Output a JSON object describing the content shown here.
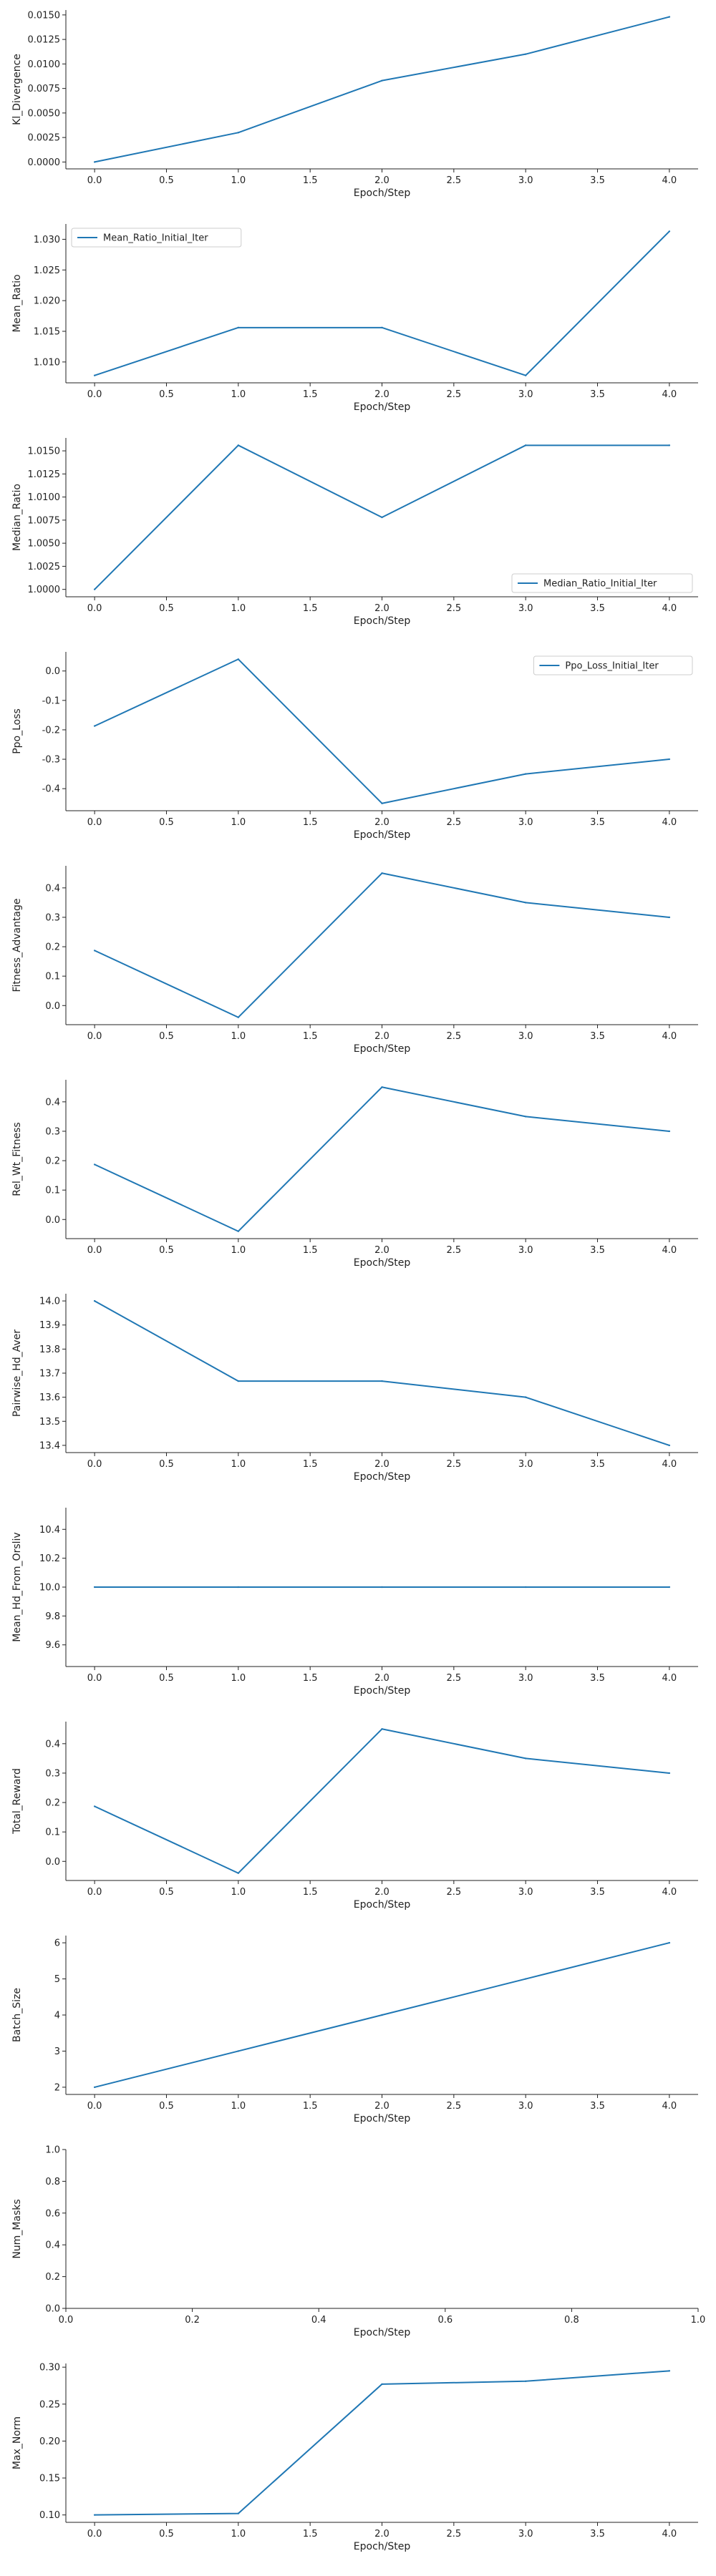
{
  "colors": {
    "line": "#1f77b4",
    "axis": "#222222",
    "legend_border": "#cccccc"
  },
  "chart_data": [
    {
      "type": "line",
      "xlabel": "Epoch/Step",
      "ylabel": "Kl_Divergence",
      "legend": "",
      "x": [
        0,
        1,
        2,
        3,
        4
      ],
      "y": [
        0.0,
        0.003,
        0.0083,
        0.011,
        0.0148
      ],
      "xlim": [
        -0.2,
        4.2
      ],
      "ylim": [
        -0.0007,
        0.0155
      ],
      "xticks": [
        "0.0",
        "0.5",
        "1.0",
        "1.5",
        "2.0",
        "2.5",
        "3.0",
        "3.5",
        "4.0"
      ],
      "yticks": [
        "0.0000",
        "0.0025",
        "0.0050",
        "0.0075",
        "0.0100",
        "0.0125",
        "0.0150"
      ]
    },
    {
      "type": "line",
      "xlabel": "Epoch/Step",
      "ylabel": "Mean_Ratio",
      "legend": "Mean_Ratio_Initial_Iter",
      "legend_position": "upper-left",
      "x": [
        0,
        1,
        2,
        3,
        4
      ],
      "y": [
        1.0078,
        1.0156,
        1.0156,
        1.0078,
        1.0313
      ],
      "xlim": [
        -0.2,
        4.2
      ],
      "ylim": [
        1.0066,
        1.0325
      ],
      "xticks": [
        "0.0",
        "0.5",
        "1.0",
        "1.5",
        "2.0",
        "2.5",
        "3.0",
        "3.5",
        "4.0"
      ],
      "yticks": [
        "1.010",
        "1.015",
        "1.020",
        "1.025",
        "1.030"
      ]
    },
    {
      "type": "line",
      "xlabel": "Epoch/Step",
      "ylabel": "Median_Ratio",
      "legend": "Median_Ratio_Initial_Iter",
      "legend_position": "lower-right",
      "x": [
        0,
        1,
        2,
        3,
        4
      ],
      "y": [
        1.0,
        1.0156,
        1.0078,
        1.0156,
        1.0156
      ],
      "xlim": [
        -0.2,
        4.2
      ],
      "ylim": [
        0.9992,
        1.0164
      ],
      "xticks": [
        "0.0",
        "0.5",
        "1.0",
        "1.5",
        "2.0",
        "2.5",
        "3.0",
        "3.5",
        "4.0"
      ],
      "yticks": [
        "1.0000",
        "1.0025",
        "1.0050",
        "1.0075",
        "1.0100",
        "1.0125",
        "1.0150"
      ]
    },
    {
      "type": "line",
      "xlabel": "Epoch/Step",
      "ylabel": "Ppo_Loss",
      "legend": "Ppo_Loss_Initial_Iter",
      "legend_position": "upper-right",
      "x": [
        0,
        1,
        2,
        3,
        4
      ],
      "y": [
        -0.187,
        0.04,
        -0.45,
        -0.35,
        -0.3
      ],
      "xlim": [
        -0.2,
        4.2
      ],
      "ylim": [
        -0.475,
        0.065
      ],
      "xticks": [
        "0.0",
        "0.5",
        "1.0",
        "1.5",
        "2.0",
        "2.5",
        "3.0",
        "3.5",
        "4.0"
      ],
      "yticks": [
        "-0.4",
        "-0.3",
        "-0.2",
        "-0.1",
        "0.0"
      ]
    },
    {
      "type": "line",
      "xlabel": "Epoch/Step",
      "ylabel": "Fitness_Advantage",
      "legend": "",
      "x": [
        0,
        1,
        2,
        3,
        4
      ],
      "y": [
        0.187,
        -0.04,
        0.45,
        0.35,
        0.3
      ],
      "xlim": [
        -0.2,
        4.2
      ],
      "ylim": [
        -0.065,
        0.475
      ],
      "xticks": [
        "0.0",
        "0.5",
        "1.0",
        "1.5",
        "2.0",
        "2.5",
        "3.0",
        "3.5",
        "4.0"
      ],
      "yticks": [
        "0.0",
        "0.1",
        "0.2",
        "0.3",
        "0.4"
      ]
    },
    {
      "type": "line",
      "xlabel": "Epoch/Step",
      "ylabel": "Rel_Wt_Fitness",
      "legend": "",
      "x": [
        0,
        1,
        2,
        3,
        4
      ],
      "y": [
        0.187,
        -0.04,
        0.45,
        0.35,
        0.3
      ],
      "xlim": [
        -0.2,
        4.2
      ],
      "ylim": [
        -0.065,
        0.475
      ],
      "xticks": [
        "0.0",
        "0.5",
        "1.0",
        "1.5",
        "2.0",
        "2.5",
        "3.0",
        "3.5",
        "4.0"
      ],
      "yticks": [
        "0.0",
        "0.1",
        "0.2",
        "0.3",
        "0.4"
      ]
    },
    {
      "type": "line",
      "xlabel": "Epoch/Step",
      "ylabel": "Pairwise_Hd_Aver",
      "legend": "",
      "x": [
        0,
        1,
        2,
        3,
        4
      ],
      "y": [
        14.0,
        13.667,
        13.667,
        13.6,
        13.4
      ],
      "xlim": [
        -0.2,
        4.2
      ],
      "ylim": [
        13.37,
        14.03
      ],
      "xticks": [
        "0.0",
        "0.5",
        "1.0",
        "1.5",
        "2.0",
        "2.5",
        "3.0",
        "3.5",
        "4.0"
      ],
      "yticks": [
        "13.4",
        "13.5",
        "13.6",
        "13.7",
        "13.8",
        "13.9",
        "14.0"
      ]
    },
    {
      "type": "line",
      "xlabel": "Epoch/Step",
      "ylabel": "Mean_Hd_From_Orsliv",
      "legend": "",
      "x": [
        0,
        1,
        2,
        3,
        4
      ],
      "y": [
        10.0,
        10.0,
        10.0,
        10.0,
        10.0
      ],
      "xlim": [
        -0.2,
        4.2
      ],
      "ylim": [
        9.45,
        10.55
      ],
      "xticks": [
        "0.0",
        "0.5",
        "1.0",
        "1.5",
        "2.0",
        "2.5",
        "3.0",
        "3.5",
        "4.0"
      ],
      "yticks": [
        "9.6",
        "9.8",
        "10.0",
        "10.2",
        "10.4"
      ]
    },
    {
      "type": "line",
      "xlabel": "Epoch/Step",
      "ylabel": "Total_Reward",
      "legend": "",
      "x": [
        0,
        1,
        2,
        3,
        4
      ],
      "y": [
        0.187,
        -0.04,
        0.45,
        0.35,
        0.3
      ],
      "xlim": [
        -0.2,
        4.2
      ],
      "ylim": [
        -0.065,
        0.475
      ],
      "xticks": [
        "0.0",
        "0.5",
        "1.0",
        "1.5",
        "2.0",
        "2.5",
        "3.0",
        "3.5",
        "4.0"
      ],
      "yticks": [
        "0.0",
        "0.1",
        "0.2",
        "0.3",
        "0.4"
      ]
    },
    {
      "type": "line",
      "xlabel": "Epoch/Step",
      "ylabel": "Batch_Size",
      "legend": "",
      "x": [
        0,
        1,
        2,
        3,
        4
      ],
      "y": [
        2,
        3,
        4,
        5,
        6
      ],
      "xlim": [
        -0.2,
        4.2
      ],
      "ylim": [
        1.8,
        6.2
      ],
      "xticks": [
        "0.0",
        "0.5",
        "1.0",
        "1.5",
        "2.0",
        "2.5",
        "3.0",
        "3.5",
        "4.0"
      ],
      "yticks": [
        "2",
        "3",
        "4",
        "5",
        "6"
      ]
    },
    {
      "type": "line",
      "xlabel": "Epoch/Step",
      "ylabel": "Num_Masks",
      "legend": "",
      "x": [],
      "y": [],
      "xlim": [
        0,
        1
      ],
      "ylim": [
        0,
        1
      ],
      "xticks": [
        "0.0",
        "0.2",
        "0.4",
        "0.6",
        "0.8",
        "1.0"
      ],
      "yticks": [
        "0.0",
        "0.2",
        "0.4",
        "0.6",
        "0.8",
        "1.0"
      ]
    },
    {
      "type": "line",
      "xlabel": "Epoch/Step",
      "ylabel": "Max_Norm",
      "legend": "",
      "x": [
        0,
        1,
        2,
        3,
        4
      ],
      "y": [
        0.1,
        0.102,
        0.277,
        0.281,
        0.295
      ],
      "xlim": [
        -0.2,
        4.2
      ],
      "ylim": [
        0.09,
        0.305
      ],
      "xticks": [
        "0.0",
        "0.5",
        "1.0",
        "1.5",
        "2.0",
        "2.5",
        "3.0",
        "3.5",
        "4.0"
      ],
      "yticks": [
        "0.10",
        "0.15",
        "0.20",
        "0.25",
        "0.30"
      ]
    }
  ]
}
